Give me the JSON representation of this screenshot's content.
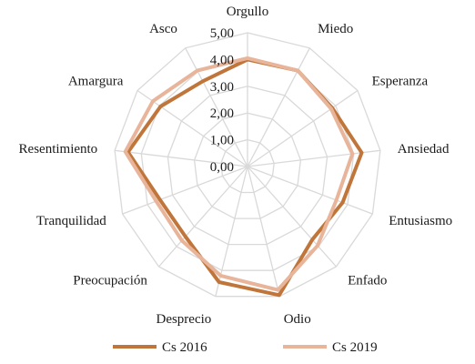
{
  "chart_data": {
    "type": "radar",
    "title": "",
    "categories": [
      "Orgullo",
      "Miedo",
      "Esperanza",
      "Ansiedad",
      "Entusiasmo",
      "Enfado",
      "Odio",
      "Desprecio",
      "Preocupación",
      "Tranquilidad",
      "Resentimiento",
      "Amargura",
      "Asco"
    ],
    "r_ticks": [
      "0,00",
      "1,00",
      "2,00",
      "3,00",
      "4,00",
      "5,00"
    ],
    "rlim": [
      0,
      5
    ],
    "grid": true,
    "legend_position": "bottom",
    "series": [
      {
        "name": "Cs 2016",
        "color": "#c0763a",
        "values": [
          4.0,
          4.05,
          3.85,
          4.3,
          3.8,
          3.65,
          4.95,
          4.45,
          3.5,
          3.5,
          4.5,
          3.95,
          3.6
        ]
      },
      {
        "name": "Cs 2019",
        "color": "#e8b49a",
        "values": [
          4.05,
          4.05,
          3.8,
          3.95,
          3.55,
          3.95,
          4.75,
          4.2,
          3.7,
          3.65,
          4.6,
          4.3,
          4.05
        ]
      }
    ]
  }
}
